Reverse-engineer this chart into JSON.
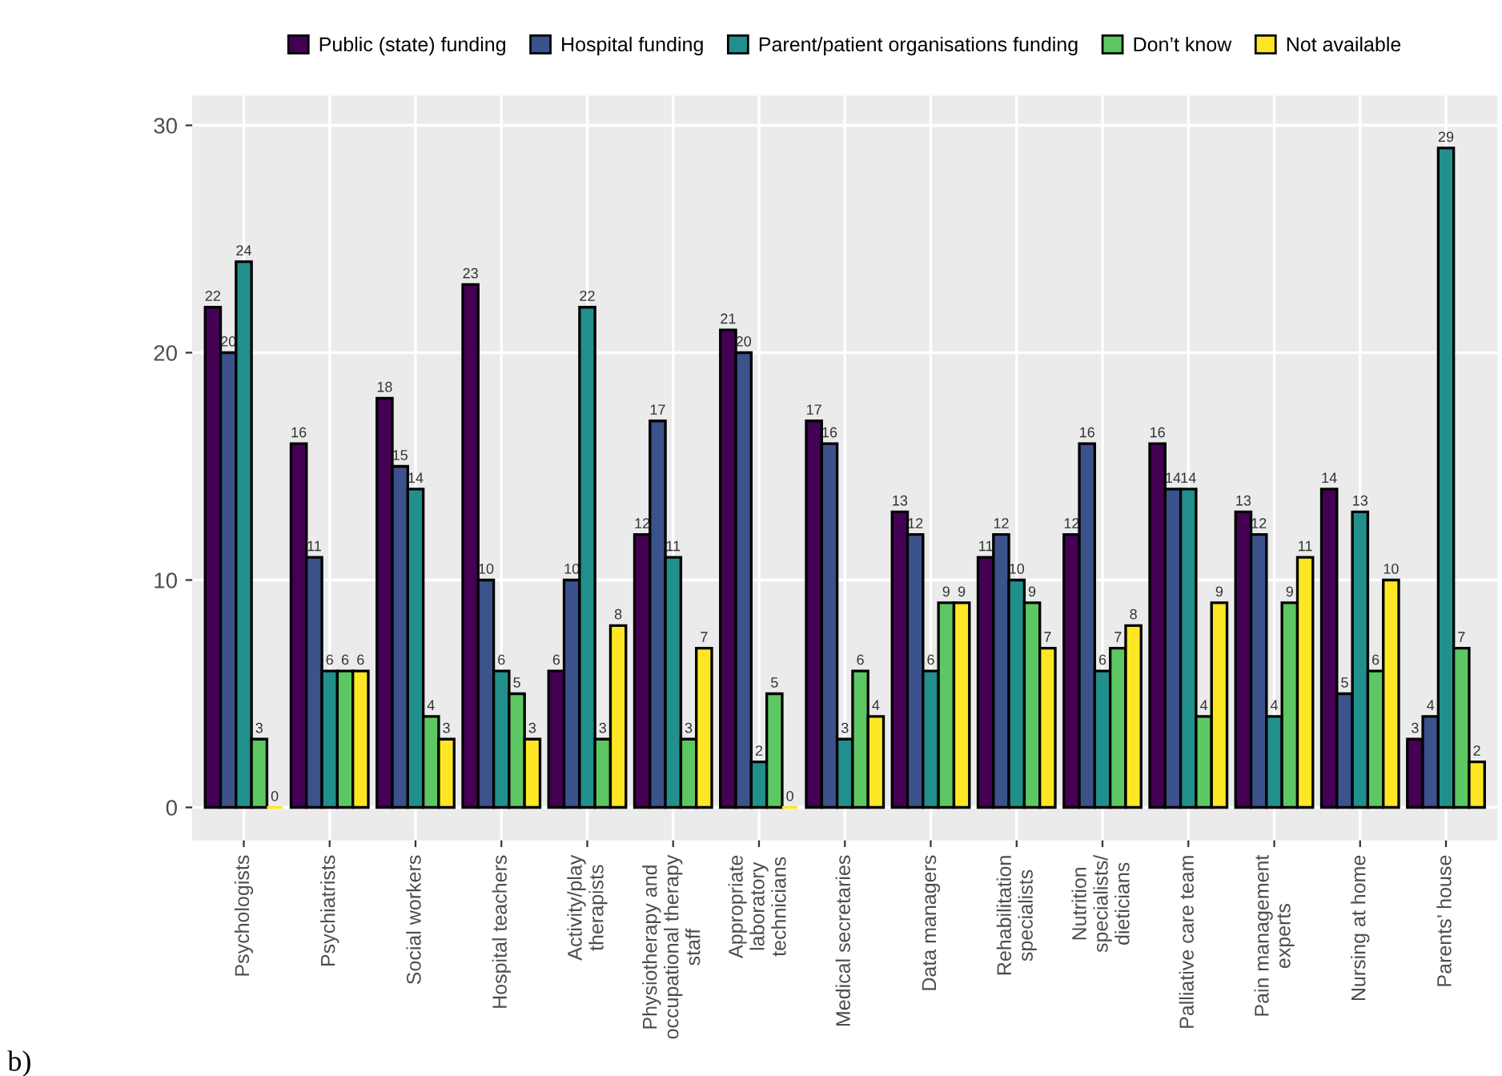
{
  "chart_data": {
    "type": "bar",
    "categories": [
      "Psychologists",
      "Psychiatrists",
      "Social workers",
      "Hospital teachers",
      "Activity/play\ntherapists",
      "Physiotherapy and\noccupational therapy\nstaff",
      "Appropriate\nlaboratory\ntechnicians",
      "Medical secretaries",
      "Data managers",
      "Rehabilitation\nspecialists",
      "Nutrition\nspecialists/\ndieticians",
      "Palliative care team",
      "Pain management\nexperts",
      "Nursing at home",
      "Parents’ house"
    ],
    "series": [
      {
        "name": "Public (state) funding",
        "color": "#440154",
        "values": [
          22,
          16,
          18,
          23,
          6,
          12,
          21,
          17,
          13,
          11,
          12,
          16,
          13,
          14,
          3
        ]
      },
      {
        "name": "Hospital funding",
        "color": "#3b528b",
        "values": [
          20,
          11,
          15,
          10,
          10,
          17,
          20,
          16,
          12,
          12,
          16,
          14,
          12,
          5,
          4
        ]
      },
      {
        "name": "Parent/patient organisations funding",
        "color": "#21908c",
        "values": [
          24,
          6,
          14,
          6,
          22,
          11,
          2,
          3,
          6,
          10,
          6,
          14,
          4,
          13,
          29
        ]
      },
      {
        "name": "Don’t know",
        "color": "#5dc863",
        "values": [
          3,
          6,
          4,
          5,
          3,
          3,
          5,
          6,
          9,
          9,
          7,
          4,
          9,
          6,
          7
        ]
      },
      {
        "name": "Not available",
        "color": "#fde725",
        "values": [
          0,
          6,
          3,
          3,
          8,
          7,
          0,
          4,
          9,
          7,
          8,
          9,
          11,
          10,
          2
        ]
      }
    ],
    "ylim": [
      -1.45,
      31.3
    ],
    "yticks": [
      0,
      10,
      20,
      30
    ],
    "grid": true,
    "legend": "top",
    "data_labels": true,
    "annotations": [
      "b)"
    ]
  }
}
